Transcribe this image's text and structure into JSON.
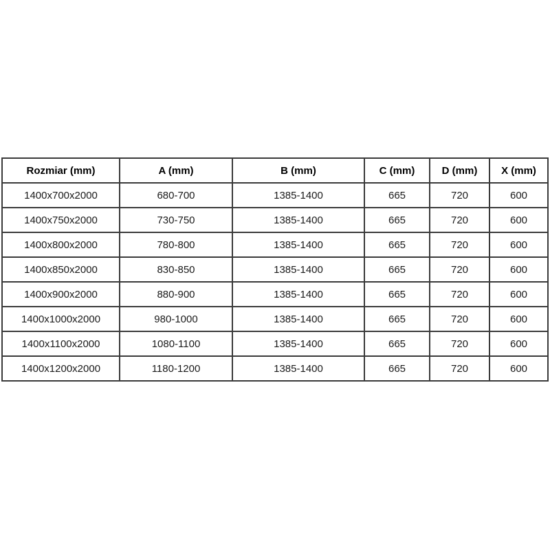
{
  "table": {
    "headers": [
      "Rozmiar (mm)",
      "A (mm)",
      "B (mm)",
      "C (mm)",
      "D (mm)",
      "X (mm)"
    ],
    "rows": [
      [
        "1400x700x2000",
        "680-700",
        "1385-1400",
        "665",
        "720",
        "600"
      ],
      [
        "1400x750x2000",
        "730-750",
        "1385-1400",
        "665",
        "720",
        "600"
      ],
      [
        "1400x800x2000",
        "780-800",
        "1385-1400",
        "665",
        "720",
        "600"
      ],
      [
        "1400x850x2000",
        "830-850",
        "1385-1400",
        "665",
        "720",
        "600"
      ],
      [
        "1400x900x2000",
        "880-900",
        "1385-1400",
        "665",
        "720",
        "600"
      ],
      [
        "1400x1000x2000",
        "980-1000",
        "1385-1400",
        "665",
        "720",
        "600"
      ],
      [
        "1400x1100x2000",
        "1080-1100",
        "1385-1400",
        "665",
        "720",
        "600"
      ],
      [
        "1400x1200x2000",
        "1180-1200",
        "1385-1400",
        "665",
        "720",
        "600"
      ]
    ],
    "colors": {
      "border": "#3a3a3a",
      "text": "#1a1a1a",
      "background": "#ffffff"
    }
  }
}
